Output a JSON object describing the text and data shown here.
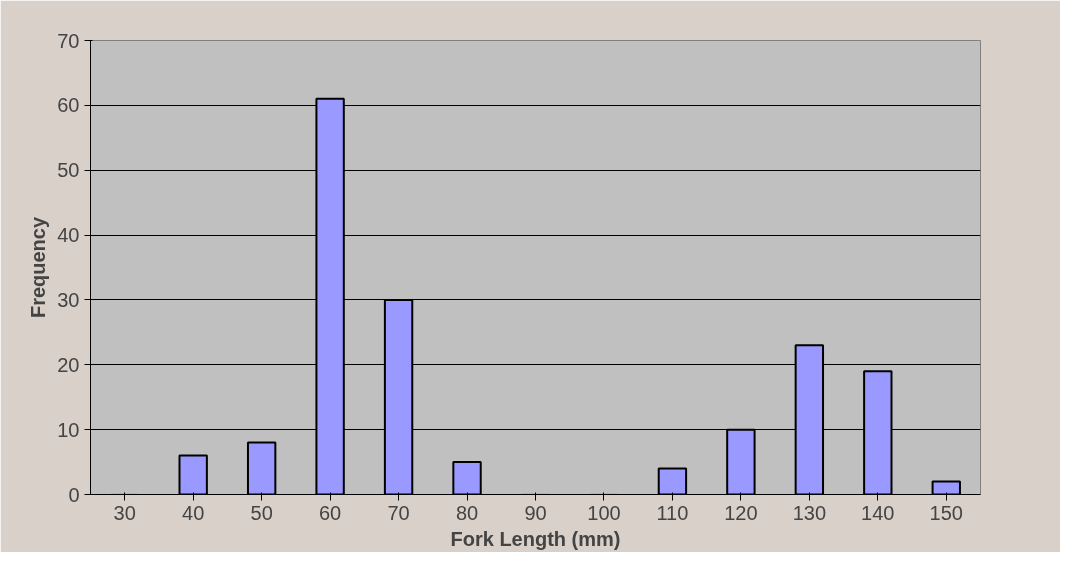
{
  "chart_data": {
    "type": "bar",
    "xlabel": "Fork Length (mm)",
    "ylabel": "Frequency",
    "categories": [
      "30",
      "40",
      "50",
      "60",
      "70",
      "80",
      "90",
      "100",
      "110",
      "120",
      "130",
      "140",
      "150"
    ],
    "values": [
      0,
      6,
      8,
      61,
      30,
      5,
      0,
      0,
      4,
      10,
      23,
      19,
      2
    ],
    "color": "#9999ff",
    "ylim": [
      0,
      70
    ],
    "yticks": [
      0,
      10,
      20,
      30,
      40,
      50,
      60,
      70
    ],
    "grid": "y"
  }
}
